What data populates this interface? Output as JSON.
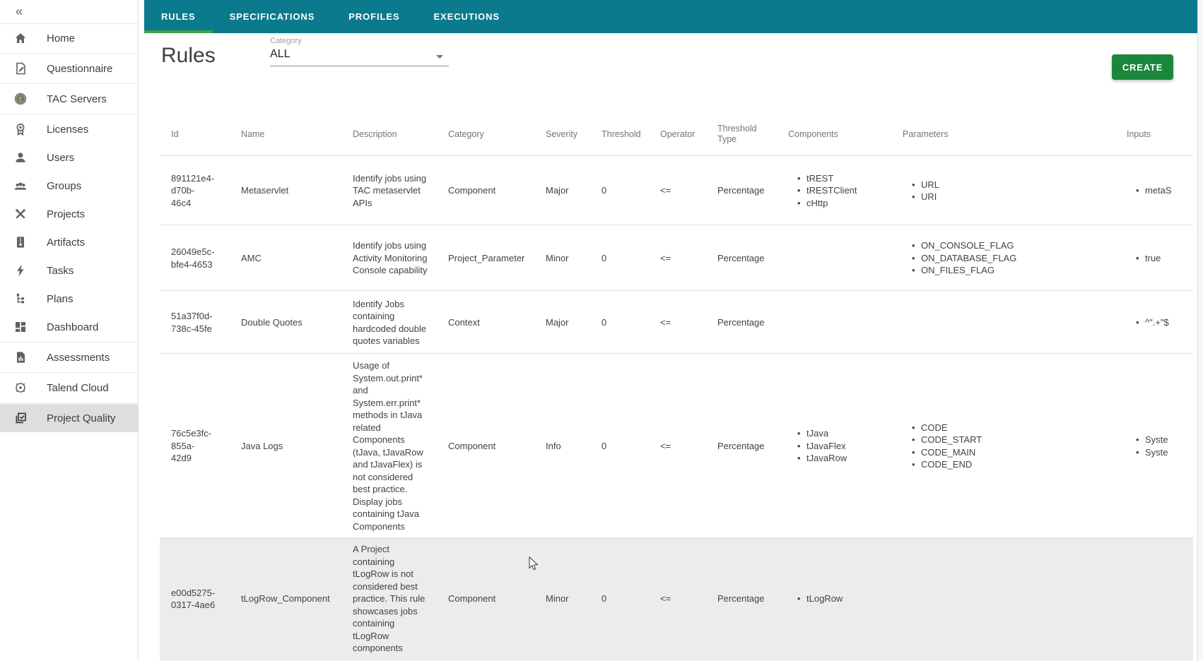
{
  "colors": {
    "topbar_teal": "#0c7a8d",
    "active_tab_underline": "#43a047",
    "create_button_green": "#1b873c",
    "row_highlight": "#ececec",
    "sidebar_selected": "#dedede"
  },
  "sidebar": {
    "collapse_icon": "«",
    "items": [
      {
        "label": "Home",
        "icon": "home",
        "divider_after": true
      },
      {
        "label": "Questionnaire",
        "icon": "questionnaire",
        "divider_after": true
      },
      {
        "label": "TAC Servers",
        "icon": "tac-servers",
        "divider_after": true
      },
      {
        "label": "Licenses",
        "icon": "licenses"
      },
      {
        "label": "Users",
        "icon": "users"
      },
      {
        "label": "Groups",
        "icon": "groups"
      },
      {
        "label": "Projects",
        "icon": "projects"
      },
      {
        "label": "Artifacts",
        "icon": "artifacts"
      },
      {
        "label": "Tasks",
        "icon": "tasks"
      },
      {
        "label": "Plans",
        "icon": "plans"
      },
      {
        "label": "Dashboard",
        "icon": "dashboard",
        "divider_after": true
      },
      {
        "label": "Assessments",
        "icon": "assessments",
        "divider_after": true
      },
      {
        "label": "Talend Cloud",
        "icon": "talend-cloud",
        "divider_after": true
      },
      {
        "label": "Project Quality",
        "icon": "project-quality",
        "selected": true
      }
    ]
  },
  "tabs": {
    "active": "RULES",
    "items": [
      "RULES",
      "SPECIFICATIONS",
      "PROFILES",
      "EXECUTIONS"
    ]
  },
  "page": {
    "title": "Rules",
    "category_label": "Category",
    "category_value": "ALL",
    "create_label": "CREATE"
  },
  "table": {
    "columns": [
      "Id",
      "Name",
      "Description",
      "Category",
      "Severity",
      "Threshold",
      "Operator",
      "Threshold Type",
      "Components",
      "Parameters",
      "Inputs"
    ],
    "rows": [
      {
        "id_lines": [
          "891121e4-",
          "d70b-",
          "46c4"
        ],
        "name": "Metaservlet",
        "description": "Identify jobs using TAC metaservlet APIs",
        "category": "Component",
        "severity": "Major",
        "threshold": "0",
        "operator": "<=",
        "threshold_type": "Percentage",
        "components": [
          "tREST",
          "tRESTClient",
          "cHttp"
        ],
        "parameters": [
          "URL",
          "URI"
        ],
        "inputs": [
          "metaS"
        ]
      },
      {
        "id_lines": [
          "26049e5c-",
          "bfe4-4653"
        ],
        "name": "AMC",
        "description": "Identify jobs using Activity Monitoring Console capability",
        "category": "Project_Parameter",
        "severity": "Minor",
        "threshold": "0",
        "operator": "<=",
        "threshold_type": "Percentage",
        "components": [],
        "parameters": [
          "ON_CONSOLE_FLAG",
          "ON_DATABASE_FLAG",
          "ON_FILES_FLAG"
        ],
        "inputs": [
          "true"
        ]
      },
      {
        "id_lines": [
          "51a37f0d-",
          "738c-45fe"
        ],
        "name": "Double Quotes",
        "description": "Identify Jobs containing hardcoded double quotes variables",
        "category": "Context",
        "severity": "Major",
        "threshold": "0",
        "operator": "<=",
        "threshold_type": "Percentage",
        "components": [],
        "parameters": [],
        "inputs": [
          "^\".+\"$"
        ]
      },
      {
        "id_lines": [
          "76c5e3fc-",
          "855a-",
          "42d9"
        ],
        "name": "Java Logs",
        "description": "Usage of System.out.print* and System.err.print* methods in tJava related Components (tJava, tJavaRow and tJavaFlex) is not considered best practice. Display jobs containing tJava Components",
        "category": "Component",
        "severity": "Info",
        "threshold": "0",
        "operator": "<=",
        "threshold_type": "Percentage",
        "components": [
          "tJava",
          "tJavaFlex",
          "tJavaRow"
        ],
        "parameters": [
          "CODE",
          "CODE_START",
          "CODE_MAIN",
          "CODE_END"
        ],
        "inputs": [
          "Syste",
          "Syste"
        ]
      },
      {
        "id_lines": [
          "e00d5275-",
          "0317-4ae6"
        ],
        "name": "tLogRow_Component",
        "description": "A Project containing tLogRow is not considered best practice. This rule showcases jobs containing tLogRow components",
        "category": "Component",
        "severity": "Minor",
        "threshold": "0",
        "operator": "<=",
        "threshold_type": "Percentage",
        "components": [
          "tLogRow"
        ],
        "parameters": [],
        "inputs": [],
        "highlighted": true
      }
    ]
  }
}
